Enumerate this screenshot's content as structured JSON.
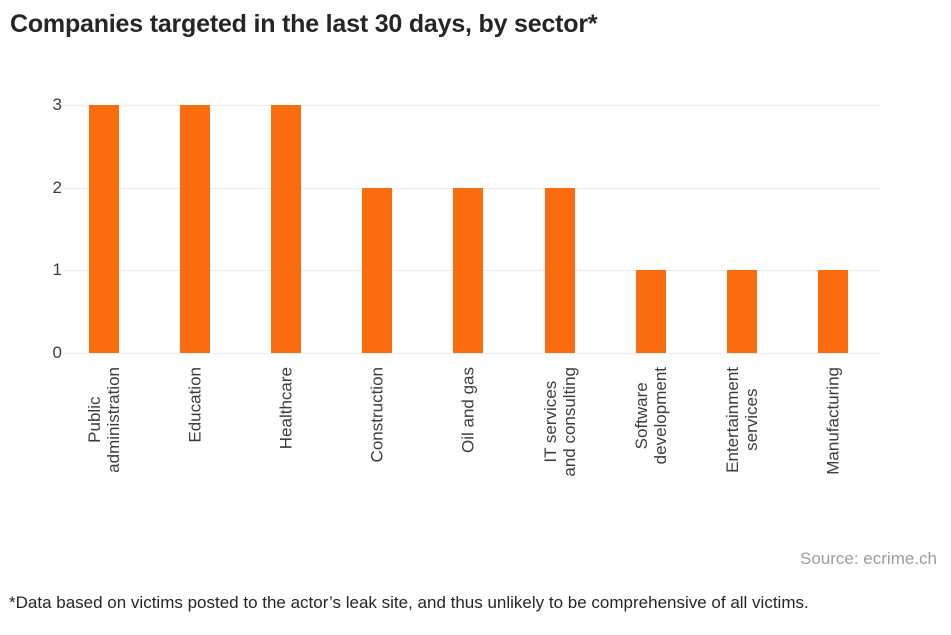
{
  "source": "Source: ecrime.ch",
  "footnote": "*Data based on victims posted to the actor’s leak site, and thus unlikely to be comprehensive of all victims.",
  "colors": {
    "bar": "#fa6c0d",
    "grid": "#ececec",
    "axis_text": "#3d3d3d",
    "title_text": "#262626",
    "source_text": "#9d9d9d"
  },
  "chart_data": {
    "type": "bar",
    "title": "Companies targeted in the last 30 days, by sector*",
    "categories": [
      "Public administration",
      "Education",
      "Healthcare",
      "Construction",
      "Oil and gas",
      "IT services and consulting",
      "Software development",
      "Entertainment services",
      "Manufacturing"
    ],
    "category_label_lines": [
      [
        "Public",
        "administration"
      ],
      [
        "Education"
      ],
      [
        "Healthcare"
      ],
      [
        "Construction"
      ],
      [
        "Oil and gas"
      ],
      [
        "IT services",
        "and consulting"
      ],
      [
        "Software",
        "development"
      ],
      [
        "Entertainment",
        "services"
      ],
      [
        "Manufacturing"
      ]
    ],
    "values": [
      3,
      3,
      3,
      2,
      2,
      2,
      1,
      1,
      1
    ],
    "yticks": [
      0,
      1,
      2,
      3
    ],
    "ylim": [
      0,
      3
    ],
    "xlabel": "",
    "ylabel": "",
    "grid": true,
    "legend": false,
    "bar_color": "#fa6c0d"
  }
}
